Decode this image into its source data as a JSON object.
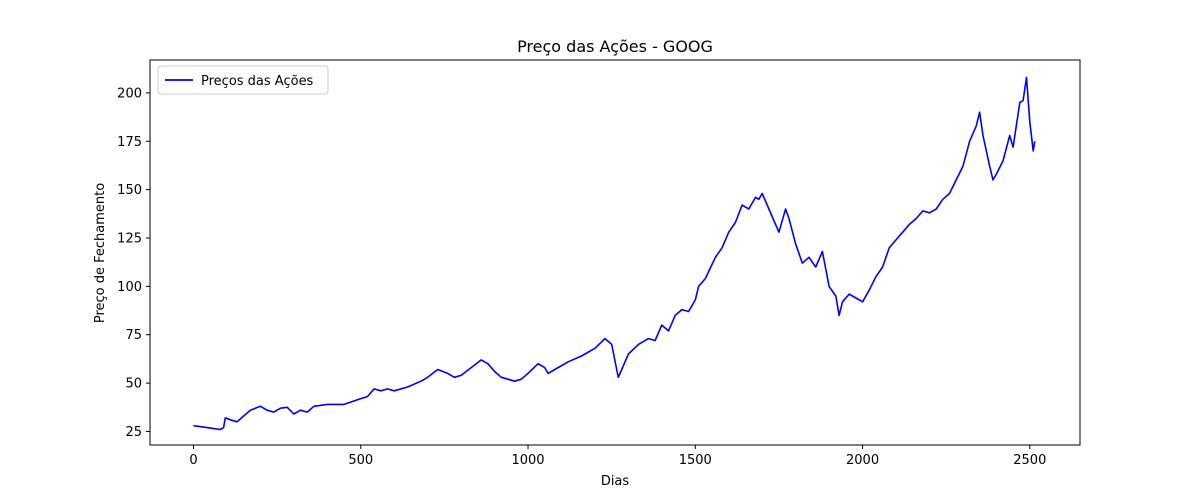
{
  "chart_data": {
    "type": "line",
    "title": "Preço das Ações - GOOG",
    "xlabel": "Dias",
    "ylabel": "Preço de Fechamento",
    "xlim": [
      -130,
      2650
    ],
    "ylim": [
      18,
      217
    ],
    "xticks": [
      0,
      500,
      1000,
      1500,
      2000,
      2500
    ],
    "yticks": [
      25,
      50,
      75,
      100,
      125,
      150,
      175,
      200
    ],
    "grid": false,
    "legend_position": "top-left",
    "series": [
      {
        "name": "Preços das Ações",
        "color": "#0000ff",
        "points": [
          [
            0,
            28
          ],
          [
            20,
            27.5
          ],
          [
            40,
            27
          ],
          [
            60,
            26.5
          ],
          [
            80,
            26
          ],
          [
            90,
            27
          ],
          [
            95,
            32
          ],
          [
            110,
            31
          ],
          [
            130,
            30
          ],
          [
            150,
            33
          ],
          [
            170,
            36
          ],
          [
            200,
            38
          ],
          [
            220,
            36
          ],
          [
            240,
            35
          ],
          [
            260,
            37
          ],
          [
            280,
            37.5
          ],
          [
            300,
            34
          ],
          [
            320,
            36
          ],
          [
            340,
            35
          ],
          [
            360,
            38
          ],
          [
            400,
            39
          ],
          [
            450,
            39
          ],
          [
            500,
            42
          ],
          [
            520,
            43
          ],
          [
            540,
            47
          ],
          [
            560,
            46
          ],
          [
            580,
            47
          ],
          [
            600,
            46
          ],
          [
            640,
            48
          ],
          [
            680,
            51
          ],
          [
            700,
            53
          ],
          [
            730,
            57
          ],
          [
            760,
            55
          ],
          [
            780,
            53
          ],
          [
            800,
            54
          ],
          [
            830,
            58
          ],
          [
            860,
            62
          ],
          [
            880,
            60
          ],
          [
            900,
            56
          ],
          [
            920,
            53
          ],
          [
            940,
            52
          ],
          [
            960,
            51
          ],
          [
            980,
            52
          ],
          [
            1000,
            55
          ],
          [
            1030,
            60
          ],
          [
            1050,
            58
          ],
          [
            1060,
            55
          ],
          [
            1080,
            57
          ],
          [
            1120,
            61
          ],
          [
            1160,
            64
          ],
          [
            1200,
            68
          ],
          [
            1230,
            73
          ],
          [
            1250,
            70
          ],
          [
            1265,
            57
          ],
          [
            1270,
            53
          ],
          [
            1280,
            57
          ],
          [
            1300,
            65
          ],
          [
            1330,
            70
          ],
          [
            1360,
            73
          ],
          [
            1380,
            72
          ],
          [
            1400,
            80
          ],
          [
            1420,
            77
          ],
          [
            1440,
            85
          ],
          [
            1460,
            88
          ],
          [
            1480,
            87
          ],
          [
            1500,
            93
          ],
          [
            1510,
            100
          ],
          [
            1530,
            104
          ],
          [
            1560,
            115
          ],
          [
            1580,
            120
          ],
          [
            1600,
            128
          ],
          [
            1620,
            133
          ],
          [
            1640,
            142
          ],
          [
            1660,
            140
          ],
          [
            1680,
            146
          ],
          [
            1690,
            145
          ],
          [
            1700,
            148
          ],
          [
            1720,
            140
          ],
          [
            1740,
            132
          ],
          [
            1750,
            128
          ],
          [
            1770,
            140
          ],
          [
            1780,
            135
          ],
          [
            1800,
            122
          ],
          [
            1820,
            112
          ],
          [
            1840,
            115
          ],
          [
            1860,
            110
          ],
          [
            1880,
            118
          ],
          [
            1900,
            100
          ],
          [
            1920,
            95
          ],
          [
            1930,
            85
          ],
          [
            1940,
            92
          ],
          [
            1960,
            96
          ],
          [
            1980,
            94
          ],
          [
            2000,
            92
          ],
          [
            2020,
            98
          ],
          [
            2040,
            105
          ],
          [
            2060,
            110
          ],
          [
            2080,
            120
          ],
          [
            2100,
            124
          ],
          [
            2120,
            128
          ],
          [
            2140,
            132
          ],
          [
            2160,
            135
          ],
          [
            2180,
            139
          ],
          [
            2200,
            138
          ],
          [
            2220,
            140
          ],
          [
            2240,
            145
          ],
          [
            2260,
            148
          ],
          [
            2280,
            155
          ],
          [
            2300,
            162
          ],
          [
            2320,
            175
          ],
          [
            2340,
            183
          ],
          [
            2350,
            190
          ],
          [
            2360,
            178
          ],
          [
            2380,
            162
          ],
          [
            2390,
            155
          ],
          [
            2400,
            158
          ],
          [
            2420,
            165
          ],
          [
            2440,
            178
          ],
          [
            2450,
            172
          ],
          [
            2470,
            195
          ],
          [
            2480,
            196
          ],
          [
            2490,
            208
          ],
          [
            2500,
            185
          ],
          [
            2510,
            170
          ],
          [
            2515,
            175
          ]
        ]
      }
    ]
  }
}
